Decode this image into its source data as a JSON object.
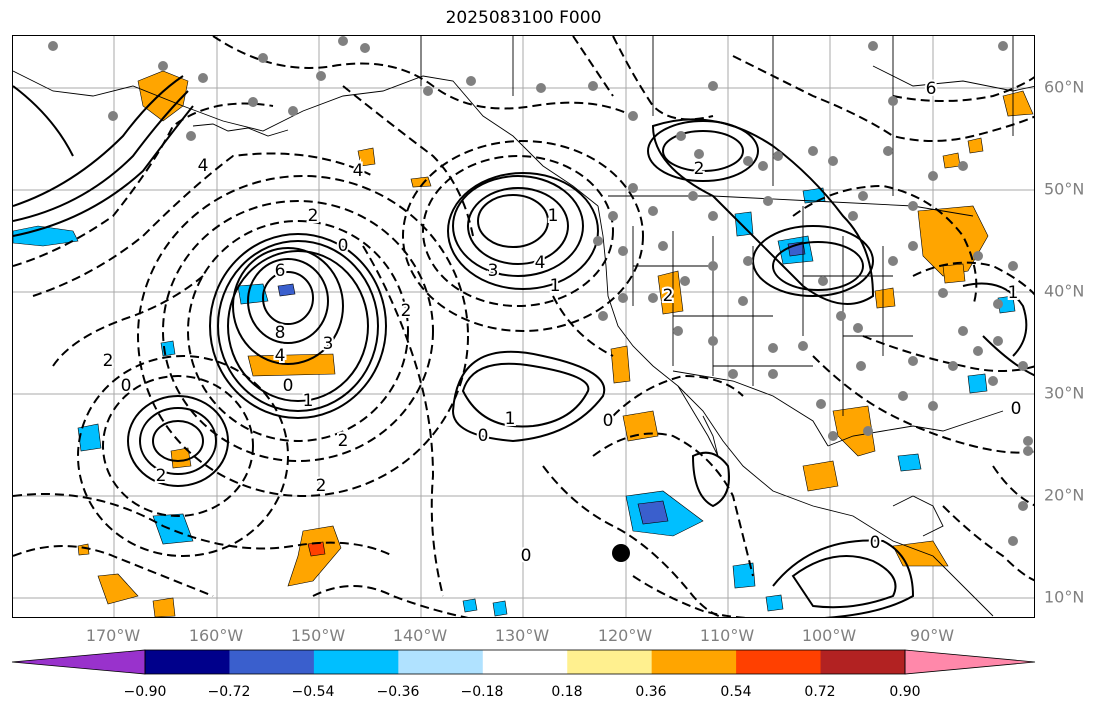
{
  "title": "2025083100 F000",
  "lon_labels": [
    "170°W",
    "160°W",
    "150°W",
    "140°W",
    "130°W",
    "120°W",
    "110°W",
    "100°W",
    "90°W"
  ],
  "lat_labels": [
    "60°N",
    "50°N",
    "40°N",
    "30°N",
    "20°N",
    "10°N"
  ],
  "colorbar": {
    "colors": [
      "#9932cc",
      "#00008b",
      "#3a5fcd",
      "#00bfff",
      "#b0e2ff",
      "#ffffff",
      "#fff08f",
      "#ffa500",
      "#ff4000",
      "#b22222",
      "#ff88aa"
    ],
    "tick_labels": [
      "−0.90",
      "−0.72",
      "−0.54",
      "−0.36",
      "−0.18",
      "0.18",
      "0.36",
      "0.54",
      "0.72",
      "0.90"
    ]
  },
  "contour_labels": [
    {
      "text": "6"
    },
    {
      "text": "8"
    },
    {
      "text": "4"
    },
    {
      "text": "2"
    },
    {
      "text": "0"
    },
    {
      "text": "3"
    },
    {
      "text": "4"
    },
    {
      "text": "1"
    },
    {
      "text": "1"
    },
    {
      "text": "0"
    },
    {
      "text": "2"
    },
    {
      "text": "3"
    },
    {
      "text": "2"
    },
    {
      "text": "1"
    },
    {
      "text": "2"
    },
    {
      "text": "0"
    },
    {
      "text": "6"
    },
    {
      "text": "4"
    },
    {
      "text": "2"
    },
    {
      "text": "4"
    },
    {
      "text": "2"
    },
    {
      "text": "0"
    },
    {
      "text": "1"
    },
    {
      "text": "0"
    },
    {
      "text": "2"
    },
    {
      "text": "2"
    },
    {
      "text": "0"
    },
    {
      "text": "0"
    },
    {
      "text": "1"
    },
    {
      "text": "0"
    }
  ]
}
